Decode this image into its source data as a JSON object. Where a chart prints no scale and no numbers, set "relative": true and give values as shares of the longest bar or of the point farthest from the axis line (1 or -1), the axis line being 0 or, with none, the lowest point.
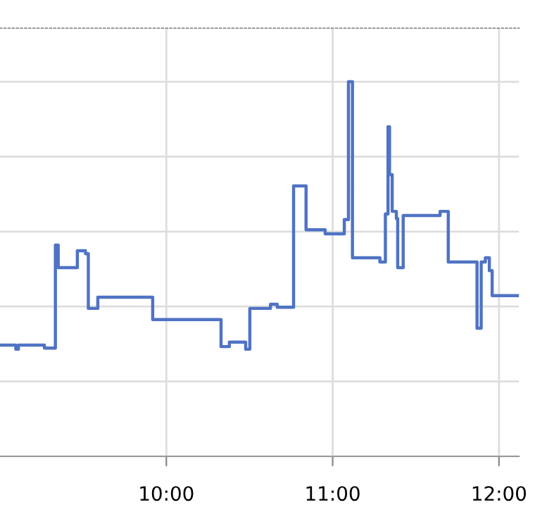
{
  "chart_data": {
    "type": "step",
    "relative": true,
    "x": [
      9.0,
      9.095,
      9.111,
      9.267,
      9.333,
      9.35,
      9.465,
      9.514,
      9.531,
      9.588,
      9.918,
      10.329,
      10.379,
      10.477,
      10.502,
      10.626,
      10.667,
      10.765,
      10.84,
      10.955,
      11.07,
      11.095,
      11.119,
      11.284,
      11.317,
      11.333,
      11.342,
      11.358,
      11.383,
      11.391,
      11.424,
      11.646,
      11.695,
      11.868,
      11.893,
      11.918,
      11.942,
      11.959,
      12.12
    ],
    "series": [
      {
        "color": "#4f73c4",
        "values": [
          0.297,
          0.286,
          0.297,
          0.289,
          0.564,
          0.504,
          0.549,
          0.541,
          0.395,
          0.425,
          0.365,
          0.293,
          0.305,
          0.286,
          0.395,
          0.406,
          0.398,
          0.722,
          0.605,
          0.594,
          0.632,
          1.0,
          0.53,
          0.519,
          0.647,
          0.88,
          0.752,
          0.654,
          0.635,
          0.504,
          0.643,
          0.654,
          0.519,
          0.342,
          0.519,
          0.53,
          0.496,
          0.429,
          0.429
        ]
      }
    ],
    "xlim": [
      9.0,
      12.12
    ],
    "xticks": [
      {
        "value": 10,
        "label": "10:00"
      },
      {
        "value": 11,
        "label": "11:00"
      },
      {
        "value": 12,
        "label": "12:00"
      }
    ],
    "grid": true,
    "marker": "none",
    "line_style": "solid"
  }
}
